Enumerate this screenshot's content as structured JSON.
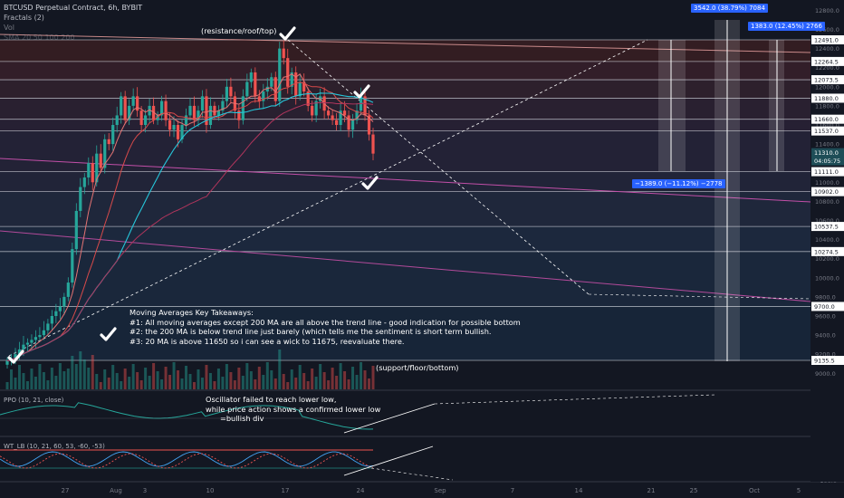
{
  "header": {
    "symbol": "BTCUSD Perpetual Contract, 6h, BYBIT",
    "indicator_1": "Fractals (2)",
    "indicator_2": "Vol",
    "indicator_3": "SMA 20 50 100 200"
  },
  "annotations": {
    "top_label": "(resistance/roof/top)",
    "bottom_label": "(support/floor/bottom)",
    "ma_title": "Moving Averages Key Takeaways:",
    "ma_line1": "#1: All moving averages except 200 MA are all above the trend line - good indication for possible bottom",
    "ma_line2": "#2: the 200 MA is below trend line just barely (which tells me the sentiment is short term bullish.",
    "ma_line3": "#3: 20 MA is above 11650 so i can see a wick to 11675, reevaluate there.",
    "osc_line1": "Oscillator failed to reach lower low,",
    "osc_line2": "while price action shows a confirmed lower low",
    "osc_line3": "=bullish div"
  },
  "measure_tags": {
    "up_big": "3542.0 (38.79%) 7084",
    "up_small": "1383.0 (12.45%) 2766",
    "down": "−1389.0 (−11.12%) −2778"
  },
  "current_price": "11310.0",
  "countdown": "04:05:75",
  "price_axis_ticks": [
    "12800.0",
    "12600.0",
    "12400.0",
    "12200.0",
    "12000.0",
    "11800.0",
    "11600.0",
    "11400.0",
    "11200.0",
    "11000.0",
    "10800.0",
    "10600.0",
    "10400.0",
    "10200.0",
    "10000.0",
    "9800.0",
    "9600.0",
    "9400.0",
    "9200.0",
    "9000.0"
  ],
  "level_labels": [
    "12491.0",
    "12264.5",
    "12073.5",
    "11880.0",
    "11660.0",
    "11537.0",
    "11111.0",
    "10902.0",
    "10537.5",
    "10274.5",
    "9700.0",
    "9135.5"
  ],
  "x_axis_labels": [
    "27",
    "Aug",
    "3",
    "10",
    "17",
    "24",
    "Sep",
    "7",
    "14",
    "21",
    "25",
    "Oct",
    "5"
  ],
  "ppo": {
    "label": "PPO (10, 21, close)",
    "ticks": [
      "4.00",
      "0.00",
      "-4.00"
    ]
  },
  "wt": {
    "label": "WT_LB (10, 21, 60, 53, -60, -53)",
    "ticks": [
      "100.0",
      "0.0",
      "-100.0"
    ]
  },
  "chart_data": {
    "type": "candlestick",
    "timeframe": "6h",
    "x_start": "2020-07-21",
    "y_range": [
      8800,
      12900
    ],
    "ohlc_close_approx": [
      9130,
      9150,
      9200,
      9250,
      9300,
      9320,
      9350,
      9380,
      9400,
      9450,
      9520,
      9600,
      9650,
      9700,
      9800,
      9950,
      10300,
      10700,
      10950,
      11050,
      11200,
      11000,
      11300,
      11150,
      11450,
      11400,
      11600,
      11700,
      11900,
      11650,
      11800,
      11900,
      11750,
      11600,
      11700,
      11800,
      11650,
      11700,
      11850,
      11650,
      11550,
      11600,
      11450,
      11600,
      11700,
      11800,
      11650,
      11750,
      11900,
      11600,
      11800,
      11700,
      11750,
      11850,
      12000,
      11900,
      11750,
      11650,
      11900,
      12050,
      12150,
      11900,
      11850,
      11950,
      12000,
      12100,
      11850,
      12400,
      12300,
      12000,
      12150,
      11900,
      12050,
      11950,
      11800,
      11700,
      11850,
      11900,
      11750,
      11700,
      11650,
      11600,
      11750,
      11700,
      11550,
      11650,
      11750,
      11900,
      11700,
      11500,
      11300
    ],
    "horizontal_levels": [
      12491.0,
      12264.5,
      12073.5,
      11880.0,
      11660.0,
      11537.0,
      11111.0,
      10902.0,
      10537.5,
      10274.5,
      9700.0,
      9135.5
    ],
    "current_price": 11310.0,
    "moving_averages": [
      "SMA 20",
      "SMA 50",
      "SMA 100",
      "SMA 200"
    ],
    "measurements": [
      {
        "label": "3542.0 (38.79%) 7084",
        "change": 3542.0,
        "pct": 38.79
      },
      {
        "label": "1383.0 (12.45%) 2766",
        "change": 1383.0,
        "pct": 12.45
      },
      {
        "label": "-1389.0 (-11.12%) -2778",
        "change": -1389.0,
        "pct": -11.12
      }
    ]
  }
}
